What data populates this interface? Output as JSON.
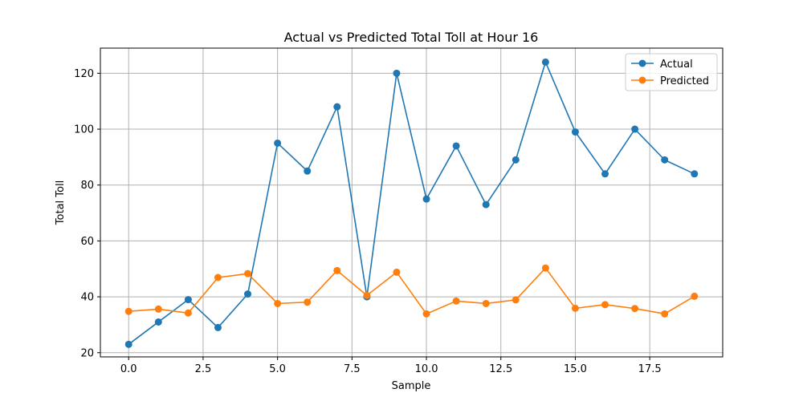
{
  "chart_data": {
    "type": "line",
    "title": "Actual vs Predicted Total Toll at Hour 16",
    "xlabel": "Sample",
    "ylabel": "Total Toll",
    "xlim": [
      -0.95,
      19.95
    ],
    "ylim": [
      18.5,
      129
    ],
    "xticks": [
      0,
      2.5,
      5,
      7.5,
      10,
      12.5,
      15,
      17.5
    ],
    "xtick_labels": [
      "0.0",
      "2.5",
      "5.0",
      "7.5",
      "10.0",
      "12.5",
      "15.0",
      "17.5"
    ],
    "yticks": [
      20,
      40,
      60,
      80,
      100,
      120
    ],
    "ytick_labels": [
      "20",
      "40",
      "60",
      "80",
      "100",
      "120"
    ],
    "grid": true,
    "legend_position": "top-right",
    "x": [
      0,
      1,
      2,
      3,
      4,
      5,
      6,
      7,
      8,
      9,
      10,
      11,
      12,
      13,
      14,
      15,
      16,
      17,
      18,
      19
    ],
    "series": [
      {
        "name": "Actual",
        "color": "#1f77b4",
        "values": [
          23,
          31,
          39,
          29,
          41,
          95,
          85,
          108,
          40,
          120,
          75,
          94,
          73,
          89,
          124,
          99,
          84,
          100,
          89,
          84
        ]
      },
      {
        "name": "Predicted",
        "color": "#ff7f0e",
        "values": [
          34.8,
          35.6,
          34.2,
          46.9,
          48.3,
          37.6,
          38.1,
          49.4,
          40.5,
          48.8,
          33.9,
          38.5,
          37.6,
          38.9,
          50.3,
          35.9,
          37.2,
          35.8,
          33.9,
          40.2
        ]
      }
    ]
  }
}
